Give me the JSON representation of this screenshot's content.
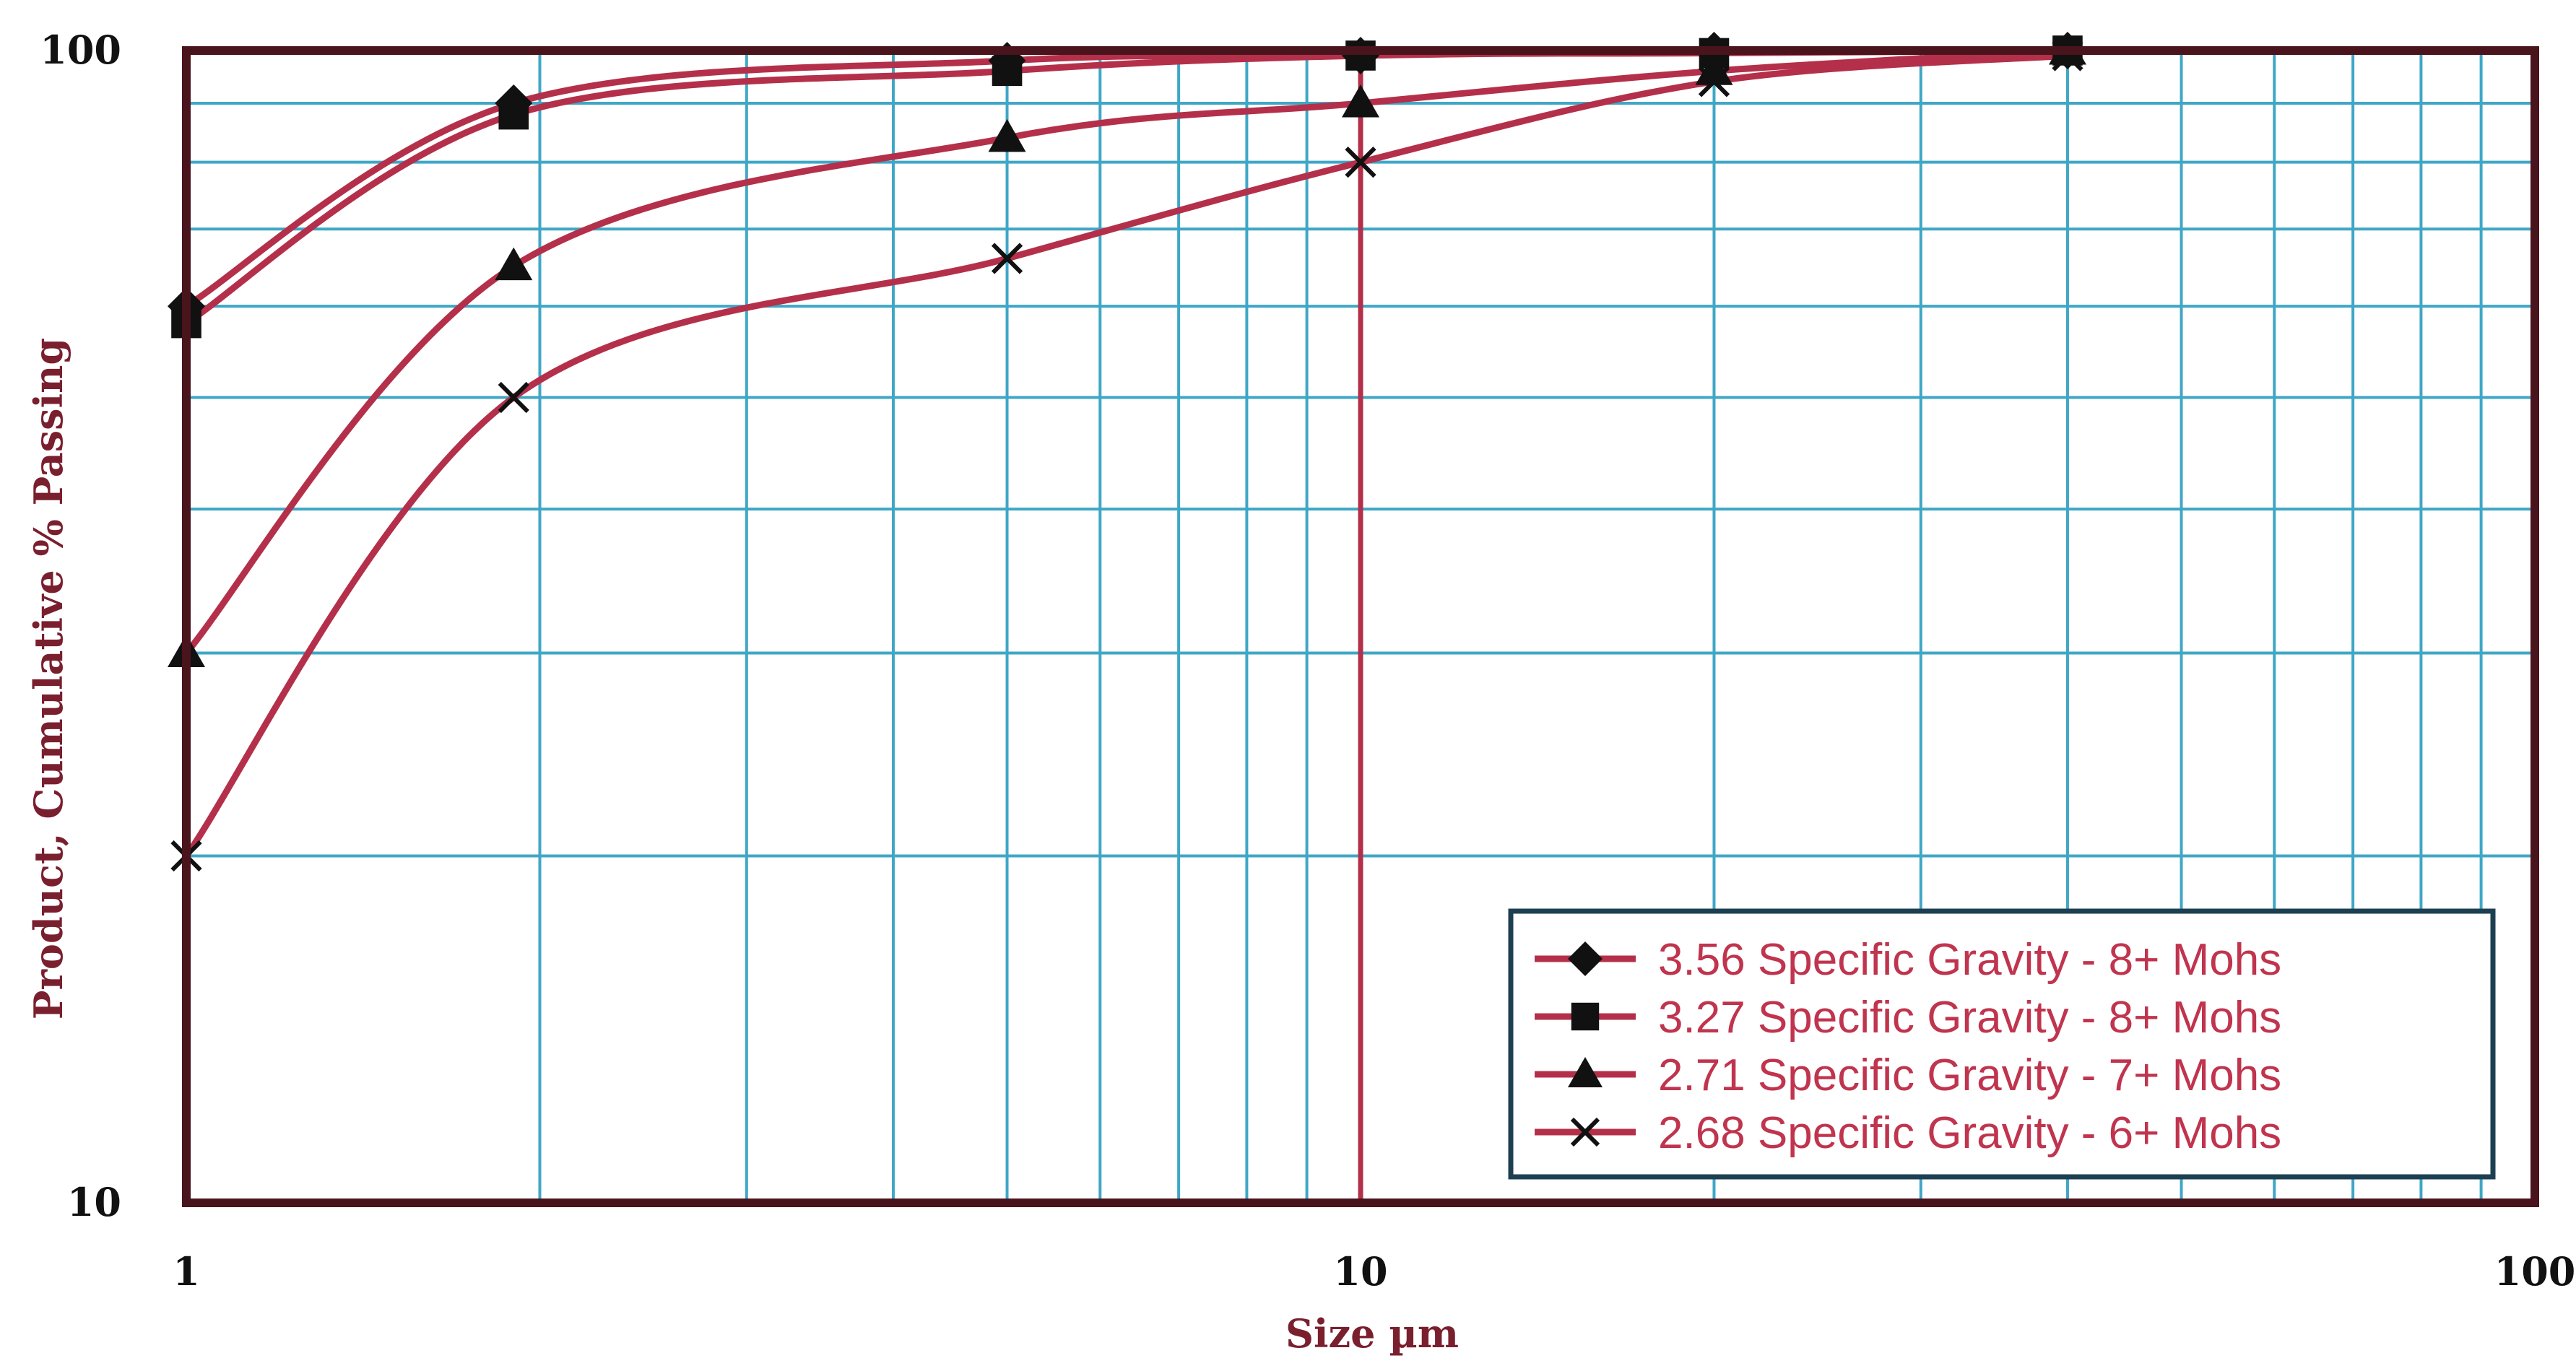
{
  "chart_data": {
    "type": "line",
    "title": "",
    "xlabel": "Size µm",
    "ylabel": "Product, Cumulative % Passing",
    "xscale": "log",
    "yscale": "log",
    "xlim": [
      1,
      100
    ],
    "ylim": [
      10,
      100
    ],
    "xticks": [
      {
        "value": 1,
        "label": "1"
      },
      {
        "value": 10,
        "label": "10"
      },
      {
        "value": 100,
        "label": "100"
      }
    ],
    "yticks": [
      {
        "value": 10,
        "label": "10"
      },
      {
        "value": 100,
        "label": "100"
      }
    ],
    "grid": true,
    "legend_position": "bottom-right",
    "colors": {
      "series_line": "#b4304a",
      "marker": "#111111",
      "grid": "#3fa7c6",
      "frame": "#4a141d",
      "axis_title": "#7a1f2e",
      "legend_text": "#c0344e",
      "legend_border": "#1c3f52"
    },
    "series": [
      {
        "name": "3.56 Specific Gravity - 8+ Mohs",
        "marker": "diamond",
        "points": [
          [
            1,
            60
          ],
          [
            1.9,
            90
          ],
          [
            5,
            98
          ],
          [
            10,
            99
          ],
          [
            20,
            100
          ],
          [
            40,
            100
          ]
        ]
      },
      {
        "name": "3.27 Specific Gravity - 8+ Mohs",
        "marker": "square",
        "points": [
          [
            1,
            58
          ],
          [
            1.9,
            88
          ],
          [
            5,
            96
          ],
          [
            10,
            99
          ],
          [
            20,
            99.5
          ],
          [
            40,
            100
          ]
        ]
      },
      {
        "name": "2.71 Specific Gravity - 7+ Mohs",
        "marker": "triangle",
        "points": [
          [
            1,
            30
          ],
          [
            1.9,
            65
          ],
          [
            5,
            84
          ],
          [
            10,
            90
          ],
          [
            20,
            96
          ],
          [
            40,
            100
          ]
        ]
      },
      {
        "name": "2.68 Specific Gravity - 6+ Mohs",
        "marker": "x",
        "points": [
          [
            1,
            20
          ],
          [
            1.9,
            50
          ],
          [
            5,
            66
          ],
          [
            10,
            80
          ],
          [
            20,
            94
          ],
          [
            40,
            99
          ]
        ]
      }
    ]
  }
}
